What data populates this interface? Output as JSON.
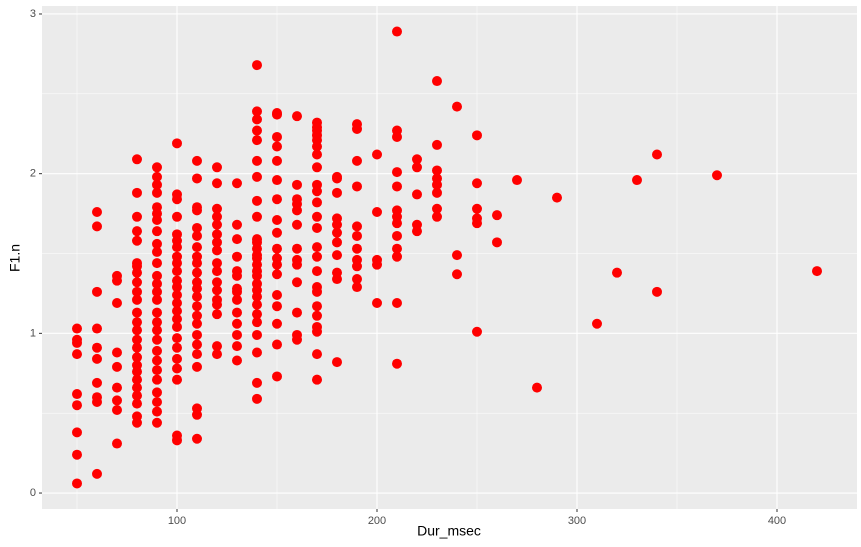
{
  "chart_data": {
    "type": "scatter",
    "x_label": "Dur_msec",
    "y_label": "F1.n",
    "color": "#ff0000",
    "grid": true,
    "xlim": [
      32.5,
      440
    ],
    "ylim": [
      -0.1,
      3.05
    ],
    "xticks": [
      100,
      200,
      300,
      400
    ],
    "yticks": [
      0,
      1,
      2,
      3
    ],
    "x": [
      50,
      50,
      50,
      50,
      50,
      50,
      50,
      50,
      50,
      60,
      60,
      60,
      60,
      60,
      60,
      60,
      60,
      60,
      60,
      70,
      70,
      70,
      70,
      70,
      70,
      70,
      70,
      70,
      80,
      80,
      80,
      80,
      80,
      80,
      80,
      80,
      80,
      80,
      80,
      80,
      80,
      80,
      80,
      80,
      80,
      80,
      80,
      80,
      80,
      80,
      80,
      80,
      80,
      90,
      90,
      90,
      90,
      90,
      90,
      90,
      90,
      90,
      90,
      90,
      90,
      90,
      90,
      90,
      90,
      90,
      90,
      90,
      90,
      90,
      90,
      90,
      90,
      90,
      90,
      90,
      100,
      100,
      100,
      100,
      100,
      100,
      100,
      100,
      100,
      100,
      100,
      100,
      100,
      100,
      100,
      100,
      100,
      100,
      100,
      100,
      100,
      100,
      100,
      100,
      110,
      110,
      110,
      110,
      110,
      110,
      110,
      110,
      110,
      110,
      110,
      110,
      110,
      110,
      110,
      110,
      110,
      110,
      110,
      110,
      110,
      110,
      110,
      120,
      120,
      120,
      120,
      120,
      120,
      120,
      120,
      120,
      120,
      120,
      120,
      120,
      120,
      120,
      120,
      120,
      130,
      130,
      130,
      130,
      130,
      130,
      130,
      130,
      130,
      130,
      130,
      130,
      130,
      130,
      140,
      140,
      140,
      140,
      140,
      140,
      140,
      140,
      140,
      140,
      140,
      140,
      140,
      140,
      140,
      140,
      140,
      140,
      140,
      140,
      140,
      140,
      140,
      140,
      140,
      140,
      140,
      150,
      150,
      150,
      150,
      150,
      150,
      150,
      150,
      150,
      150,
      150,
      150,
      150,
      150,
      150,
      150,
      150,
      150,
      160,
      160,
      160,
      160,
      160,
      160,
      160,
      160,
      160,
      160,
      160,
      160,
      160,
      170,
      170,
      170,
      170,
      170,
      170,
      170,
      170,
      170,
      170,
      170,
      170,
      170,
      170,
      170,
      170,
      170,
      170,
      170,
      170,
      170,
      170,
      170,
      170,
      180,
      180,
      180,
      180,
      180,
      180,
      180,
      180,
      180,
      180,
      180,
      190,
      190,
      190,
      190,
      190,
      190,
      190,
      190,
      190,
      190,
      190,
      200,
      200,
      200,
      200,
      200,
      210,
      210,
      210,
      210,
      210,
      210,
      210,
      210,
      210,
      210,
      210,
      210,
      210,
      220,
      220,
      220,
      220,
      220,
      230,
      230,
      230,
      230,
      230,
      230,
      230,
      230,
      240,
      240,
      240,
      250,
      250,
      250,
      250,
      250,
      250,
      260,
      260,
      270,
      280,
      290,
      310,
      320,
      330,
      340,
      340,
      370,
      420
    ],
    "values": [
      1.03,
      0.96,
      0.94,
      0.87,
      0.62,
      0.55,
      0.38,
      0.24,
      0.06,
      1.76,
      1.67,
      1.26,
      1.03,
      0.91,
      0.84,
      0.69,
      0.6,
      0.57,
      0.12,
      1.36,
      1.33,
      1.19,
      0.88,
      0.79,
      0.66,
      0.58,
      0.52,
      0.31,
      2.09,
      1.88,
      1.73,
      1.64,
      1.58,
      1.44,
      1.42,
      1.38,
      1.32,
      1.26,
      1.21,
      1.13,
      1.07,
      1.02,
      0.96,
      0.91,
      0.85,
      0.8,
      0.76,
      0.71,
      0.66,
      0.61,
      0.56,
      0.48,
      0.44,
      2.04,
      1.98,
      1.93,
      1.88,
      1.79,
      1.75,
      1.71,
      1.64,
      1.56,
      1.51,
      1.44,
      1.36,
      1.31,
      1.26,
      1.21,
      1.13,
      1.07,
      1.02,
      0.96,
      0.89,
      0.83,
      0.77,
      0.71,
      0.63,
      0.57,
      0.51,
      0.44,
      2.19,
      1.87,
      1.84,
      1.73,
      1.62,
      1.58,
      1.54,
      1.48,
      1.44,
      1.39,
      1.33,
      1.29,
      1.24,
      1.19,
      1.14,
      1.09,
      1.04,
      0.97,
      0.91,
      0.84,
      0.78,
      0.71,
      0.36,
      0.33,
      2.08,
      1.97,
      1.79,
      1.77,
      1.66,
      1.61,
      1.54,
      1.48,
      1.44,
      1.38,
      1.32,
      1.28,
      1.23,
      1.17,
      1.11,
      1.06,
      0.99,
      0.93,
      0.87,
      0.79,
      0.53,
      0.49,
      0.34,
      2.04,
      1.94,
      1.78,
      1.73,
      1.68,
      1.62,
      1.57,
      1.52,
      1.44,
      1.39,
      1.32,
      1.27,
      1.21,
      1.18,
      1.12,
      0.92,
      0.87,
      1.94,
      1.68,
      1.59,
      1.48,
      1.39,
      1.36,
      1.28,
      1.26,
      1.21,
      1.13,
      1.06,
      0.99,
      0.92,
      0.83,
      2.68,
      2.39,
      2.34,
      2.27,
      2.21,
      2.08,
      1.98,
      1.83,
      1.73,
      1.59,
      1.57,
      1.53,
      1.49,
      1.47,
      1.43,
      1.39,
      1.36,
      1.31,
      1.27,
      1.23,
      1.18,
      1.12,
      1.07,
      0.99,
      0.88,
      0.69,
      0.59,
      2.38,
      2.37,
      2.23,
      2.17,
      2.08,
      1.96,
      1.84,
      1.71,
      1.63,
      1.53,
      1.47,
      1.43,
      1.37,
      1.24,
      1.17,
      1.06,
      0.93,
      0.73,
      2.36,
      1.93,
      1.84,
      1.81,
      1.77,
      1.68,
      1.53,
      1.46,
      1.43,
      1.32,
      1.13,
      0.99,
      0.96,
      2.32,
      2.29,
      2.27,
      2.24,
      2.21,
      2.17,
      2.12,
      2.04,
      1.93,
      1.89,
      1.82,
      1.73,
      1.66,
      1.54,
      1.48,
      1.39,
      1.29,
      1.26,
      1.17,
      1.11,
      1.04,
      1.01,
      0.87,
      0.71,
      1.98,
      1.97,
      1.88,
      1.72,
      1.68,
      1.63,
      1.57,
      1.49,
      1.38,
      1.34,
      0.82,
      2.31,
      2.28,
      2.08,
      1.92,
      1.67,
      1.61,
      1.53,
      1.46,
      1.42,
      1.34,
      1.29,
      2.12,
      1.76,
      1.46,
      1.43,
      1.19,
      2.89,
      2.27,
      2.23,
      2.01,
      1.92,
      1.77,
      1.73,
      1.69,
      1.61,
      1.53,
      1.48,
      1.19,
      0.81,
      2.09,
      2.04,
      1.87,
      1.68,
      1.64,
      2.58,
      2.18,
      2.02,
      1.97,
      1.93,
      1.88,
      1.78,
      1.73,
      2.42,
      1.49,
      1.37,
      2.24,
      1.94,
      1.78,
      1.72,
      1.69,
      1.01,
      1.74,
      1.57,
      1.96,
      0.66,
      1.85,
      1.06,
      1.38,
      1.96,
      2.12,
      1.26,
      1.99,
      1.39
    ]
  }
}
